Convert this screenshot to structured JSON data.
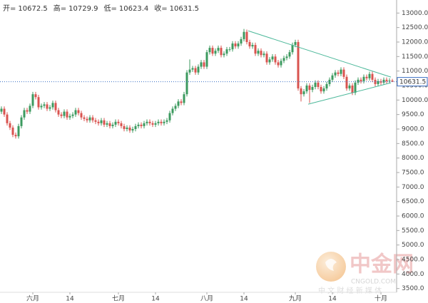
{
  "chart_data": {
    "type": "candlestick",
    "ohlc_header": [
      {
        "label": "开=",
        "value": 10672.5
      },
      {
        "label": "高=",
        "value": 10729.9
      },
      {
        "label": "低=",
        "value": 10623.4
      },
      {
        "label": "收=",
        "value": 10631.5
      }
    ],
    "categories": [
      null,
      null,
      null,
      null,
      null,
      null,
      null,
      null,
      null,
      null,
      null,
      "六月",
      null,
      null,
      null,
      null,
      null,
      null,
      null,
      null,
      null,
      null,
      null,
      null,
      "14",
      null,
      null,
      null,
      null,
      null,
      null,
      null,
      null,
      null,
      null,
      null,
      null,
      null,
      null,
      null,
      null,
      "七月",
      null,
      null,
      null,
      null,
      null,
      null,
      null,
      null,
      null,
      null,
      null,
      null,
      "14",
      null,
      null,
      null,
      null,
      null,
      null,
      null,
      null,
      null,
      null,
      null,
      null,
      null,
      null,
      null,
      null,
      null,
      "八月",
      null,
      null,
      null,
      null,
      null,
      null,
      null,
      null,
      null,
      null,
      null,
      null,
      "14",
      null,
      null,
      null,
      null,
      null,
      null,
      null,
      null,
      null,
      null,
      null,
      null,
      null,
      null,
      null,
      null,
      null,
      "九月",
      null,
      null,
      null,
      null,
      null,
      null,
      null,
      null,
      null,
      null,
      null,
      null,
      "14",
      null,
      null,
      null,
      null,
      null,
      null,
      null,
      null,
      null,
      null,
      null,
      null,
      null,
      null,
      null,
      null,
      "十月",
      null,
      null,
      null,
      null
    ],
    "series": [
      {
        "up_color": "#3c9a5f",
        "down_color": "#d9534f",
        "ohlc": [
          [
            9600,
            9780,
            9520,
            9700
          ],
          [
            9700,
            9780,
            9420,
            9500
          ],
          [
            9500,
            9580,
            9120,
            9200
          ],
          [
            9200,
            9280,
            8970,
            9050
          ],
          [
            9050,
            9130,
            8720,
            8800
          ],
          [
            8800,
            8880,
            8670,
            8750
          ],
          [
            8750,
            9180,
            8670,
            9100
          ],
          [
            9100,
            9480,
            9020,
            9400
          ],
          [
            9400,
            9730,
            9320,
            9650
          ],
          [
            9650,
            9730,
            9520,
            9600
          ],
          [
            9600,
            9880,
            9520,
            9800
          ],
          [
            9800,
            10280,
            9720,
            10200
          ],
          [
            10200,
            10280,
            10020,
            10100
          ],
          [
            10100,
            10180,
            9670,
            9750
          ],
          [
            9750,
            9880,
            9670,
            9800
          ],
          [
            9800,
            9930,
            9720,
            9850
          ],
          [
            9850,
            9930,
            9620,
            9700
          ],
          [
            9700,
            9830,
            9620,
            9750
          ],
          [
            9750,
            9980,
            9670,
            9900
          ],
          [
            9900,
            9980,
            9570,
            9650
          ],
          [
            9650,
            9730,
            9420,
            9500
          ],
          [
            9500,
            9580,
            9370,
            9450
          ],
          [
            9450,
            9680,
            9370,
            9600
          ],
          [
            9600,
            9680,
            9320,
            9400
          ],
          [
            9400,
            9530,
            9320,
            9450
          ],
          [
            9450,
            9580,
            9370,
            9500
          ],
          [
            9500,
            9730,
            9420,
            9650
          ],
          [
            9650,
            9730,
            9470,
            9550
          ],
          [
            9550,
            9630,
            9320,
            9400
          ],
          [
            9400,
            9480,
            9270,
            9350
          ],
          [
            9350,
            9430,
            9220,
            9300
          ],
          [
            9300,
            9480,
            9220,
            9400
          ],
          [
            9400,
            9480,
            9220,
            9300
          ],
          [
            9300,
            9380,
            9170,
            9250
          ],
          [
            9250,
            9330,
            9120,
            9200
          ],
          [
            9200,
            9380,
            9120,
            9300
          ],
          [
            9300,
            9380,
            9070,
            9150
          ],
          [
            9150,
            9280,
            9070,
            9200
          ],
          [
            9200,
            9280,
            9020,
            9100
          ],
          [
            9100,
            9230,
            9020,
            9150
          ],
          [
            9150,
            9330,
            9070,
            9250
          ],
          [
            9250,
            9330,
            9120,
            9200
          ],
          [
            9200,
            9280,
            9020,
            9100
          ],
          [
            9100,
            9180,
            8920,
            9000
          ],
          [
            9000,
            9130,
            8920,
            9050
          ],
          [
            9050,
            9130,
            8870,
            8950
          ],
          [
            8950,
            9080,
            8870,
            9000
          ],
          [
            9000,
            9180,
            8920,
            9100
          ],
          [
            9100,
            9230,
            9020,
            9150
          ],
          [
            9150,
            9230,
            9020,
            9100
          ],
          [
            9100,
            9280,
            9020,
            9200
          ],
          [
            9200,
            9330,
            9120,
            9250
          ],
          [
            9250,
            9330,
            9120,
            9200
          ],
          [
            9200,
            9280,
            9070,
            9150
          ],
          [
            9150,
            9280,
            9070,
            9200
          ],
          [
            9200,
            9330,
            9120,
            9250
          ],
          [
            9250,
            9330,
            9120,
            9200
          ],
          [
            9200,
            9330,
            9120,
            9250
          ],
          [
            9250,
            9380,
            9170,
            9300
          ],
          [
            9300,
            9630,
            9220,
            9550
          ],
          [
            9550,
            9780,
            9470,
            9700
          ],
          [
            9700,
            9880,
            9620,
            9800
          ],
          [
            9800,
            10030,
            9720,
            9950
          ],
          [
            9950,
            10030,
            9820,
            9900
          ],
          [
            9900,
            10280,
            9820,
            10200
          ],
          [
            10200,
            11030,
            10120,
            10950
          ],
          [
            10950,
            11400,
            10870,
            11050
          ],
          [
            11050,
            11180,
            10970,
            11100
          ],
          [
            11100,
            11180,
            10870,
            10950
          ],
          [
            10950,
            11230,
            10870,
            11150
          ],
          [
            11150,
            11380,
            11070,
            11300
          ],
          [
            11300,
            11380,
            11070,
            11150
          ],
          [
            11150,
            11730,
            11070,
            11650
          ],
          [
            11650,
            11880,
            11570,
            11800
          ],
          [
            11800,
            11880,
            11520,
            11600
          ],
          [
            11600,
            11780,
            11520,
            11700
          ],
          [
            11700,
            11880,
            11620,
            11800
          ],
          [
            11800,
            11880,
            11470,
            11550
          ],
          [
            11550,
            11680,
            11470,
            11600
          ],
          [
            11600,
            11830,
            11520,
            11750
          ],
          [
            11750,
            11830,
            11670,
            11750
          ],
          [
            11750,
            12030,
            11670,
            11950
          ],
          [
            11950,
            12030,
            11770,
            11850
          ],
          [
            11850,
            12030,
            11770,
            11950
          ],
          [
            11950,
            12180,
            11870,
            12100
          ],
          [
            12100,
            12450,
            12020,
            12350
          ],
          [
            12350,
            12430,
            11920,
            12000
          ],
          [
            12000,
            12080,
            11770,
            11850
          ],
          [
            11850,
            11980,
            11770,
            11900
          ],
          [
            11900,
            11980,
            11520,
            11600
          ],
          [
            11600,
            11780,
            11520,
            11700
          ],
          [
            11700,
            11780,
            11470,
            11550
          ],
          [
            11550,
            11680,
            11470,
            11600
          ],
          [
            11600,
            11680,
            11220,
            11300
          ],
          [
            11300,
            11480,
            11220,
            11400
          ],
          [
            11400,
            11580,
            11320,
            11500
          ],
          [
            11500,
            11580,
            11220,
            11300
          ],
          [
            11300,
            11380,
            11120,
            11200
          ],
          [
            11200,
            11430,
            11120,
            11350
          ],
          [
            11350,
            11530,
            11270,
            11450
          ],
          [
            11450,
            11580,
            11370,
            11500
          ],
          [
            11500,
            11730,
            11420,
            11650
          ],
          [
            11650,
            11980,
            11570,
            11900
          ],
          [
            11900,
            12080,
            11820,
            12000
          ],
          [
            12000,
            12080,
            10320,
            10400
          ],
          [
            10400,
            10480,
            9950,
            10200
          ],
          [
            10200,
            10380,
            10120,
            10300
          ],
          [
            10300,
            10580,
            10220,
            10500
          ],
          [
            10500,
            10580,
            9900,
            10350
          ],
          [
            10350,
            10530,
            10270,
            10450
          ],
          [
            10450,
            10680,
            10370,
            10600
          ],
          [
            10600,
            10680,
            10370,
            10450
          ],
          [
            10450,
            10530,
            10220,
            10300
          ],
          [
            10300,
            10480,
            10220,
            10400
          ],
          [
            10400,
            10630,
            10320,
            10550
          ],
          [
            10550,
            10780,
            10470,
            10700
          ],
          [
            10700,
            10930,
            10620,
            10850
          ],
          [
            10850,
            11030,
            10770,
            10950
          ],
          [
            10950,
            11030,
            10820,
            10900
          ],
          [
            10900,
            11130,
            10820,
            11050
          ],
          [
            11050,
            11130,
            10720,
            10800
          ],
          [
            10800,
            10880,
            10320,
            10400
          ],
          [
            10400,
            10580,
            10320,
            10500
          ],
          [
            10500,
            10580,
            10170,
            10250
          ],
          [
            10250,
            10680,
            10170,
            10600
          ],
          [
            10600,
            10780,
            10520,
            10700
          ],
          [
            10700,
            10780,
            10570,
            10650
          ],
          [
            10650,
            10880,
            10570,
            10800
          ],
          [
            10800,
            10880,
            10670,
            10750
          ],
          [
            10750,
            10980,
            10670,
            10900
          ],
          [
            10900,
            10980,
            10620,
            10700
          ],
          [
            10700,
            10780,
            10470,
            10550
          ],
          [
            10550,
            10730,
            10470,
            10650
          ],
          [
            10650,
            10730,
            10520,
            10600
          ],
          [
            10600,
            10780,
            10520,
            10700
          ],
          [
            10700,
            10780,
            10570,
            10650
          ],
          [
            10650,
            10750,
            10570,
            10672.5
          ],
          [
            10672.5,
            10729.9,
            10623.4,
            10631.5
          ]
        ]
      }
    ],
    "trendlines": [
      {
        "color": "#4cb89a",
        "points": [
          [
            86.5,
            12386
          ],
          [
            136.5,
            10791
          ]
        ]
      },
      {
        "color": "#4cb89a",
        "points": [
          [
            107.5,
            9858
          ],
          [
            136.5,
            10594
          ]
        ]
      }
    ],
    "price_line_color": "#3a6fc4",
    "ylim": [
      3000,
      13450
    ],
    "yticks": [
      {
        "value": 3500,
        "label": "3500.0"
      },
      {
        "value": 4000,
        "label": "4000.0"
      },
      {
        "value": 4500,
        "label": "4500.0"
      },
      {
        "value": 5000,
        "label": "5000.0"
      },
      {
        "value": 5500,
        "label": "5500.0"
      },
      {
        "value": 6000,
        "label": "6000.0"
      },
      {
        "value": 6500,
        "label": "6500.0"
      },
      {
        "value": 7000,
        "label": "7000.0"
      },
      {
        "value": 7500,
        "label": "7500.0"
      },
      {
        "value": 8000,
        "label": "8000.0"
      },
      {
        "value": 8500,
        "label": "8500.0"
      },
      {
        "value": 9000,
        "label": "9000.0"
      },
      {
        "value": 9500,
        "label": "9500.0"
      },
      {
        "value": 10000,
        "label": "10000.0"
      },
      {
        "value": 10500,
        "label": "10500.0"
      },
      {
        "value": 11000,
        "label": "11000.0"
      },
      {
        "value": 11500,
        "label": "11500.0"
      },
      {
        "value": 12000,
        "label": "12000.0"
      },
      {
        "value": 12500,
        "label": "12500.0"
      },
      {
        "value": 13000,
        "label": "13000.0"
      }
    ],
    "watermark": {
      "brand": "中金网",
      "site": "CNGOLD.COM",
      "slogan": "中 文 财 经 新 媒 体"
    }
  }
}
